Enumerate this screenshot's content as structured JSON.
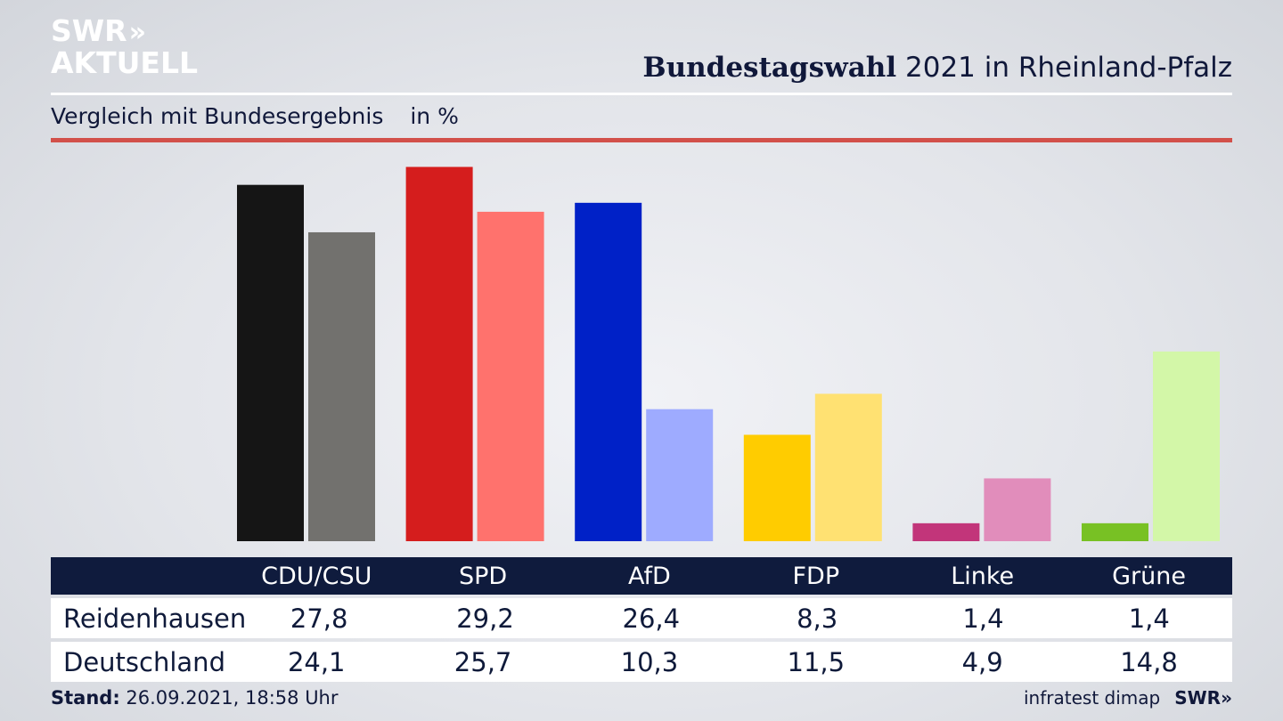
{
  "brand": {
    "logo_line1": "SWR",
    "logo_arrows": "»",
    "logo_line2": "AKTUELL"
  },
  "header": {
    "title_bold": "Bundestagswahl",
    "title_rest": "2021 in Rheinland-Pfalz",
    "subtitle": "Vergleich mit Bundesergebnis",
    "unit": "in %"
  },
  "colors": {
    "header_bar": "#0f1b3d",
    "accent_rule": "#d2504a"
  },
  "chart_data": {
    "type": "bar",
    "categories": [
      "CDU/CSU",
      "SPD",
      "AfD",
      "FDP",
      "Linke",
      "Grüne"
    ],
    "series": [
      {
        "name": "Reidenhausen",
        "values": [
          27.8,
          29.2,
          26.4,
          8.3,
          1.4,
          1.4
        ],
        "colors": [
          "#151515",
          "#d51d1d",
          "#0021c7",
          "#ffcc00",
          "#c2357a",
          "#78c124"
        ]
      },
      {
        "name": "Deutschland",
        "values": [
          24.1,
          25.7,
          10.3,
          11.5,
          4.9,
          14.8
        ],
        "colors": [
          "#72716e",
          "#ff726d",
          "#9eabff",
          "#ffe172",
          "#e18dbb",
          "#d3f7a8"
        ]
      }
    ],
    "value_labels": [
      [
        "27,8",
        "29,2",
        "26,4",
        "8,3",
        "1,4",
        "1,4"
      ],
      [
        "24,1",
        "25,7",
        "10,3",
        "11,5",
        "4,9",
        "14,8"
      ]
    ],
    "ylim": [
      0,
      30
    ],
    "grid": false,
    "legend": "table-below"
  },
  "footer": {
    "stand_label": "Stand:",
    "stand_value": "26.09.2021, 18:58 Uhr",
    "source": "infratest dimap",
    "brand": "SWR»"
  }
}
